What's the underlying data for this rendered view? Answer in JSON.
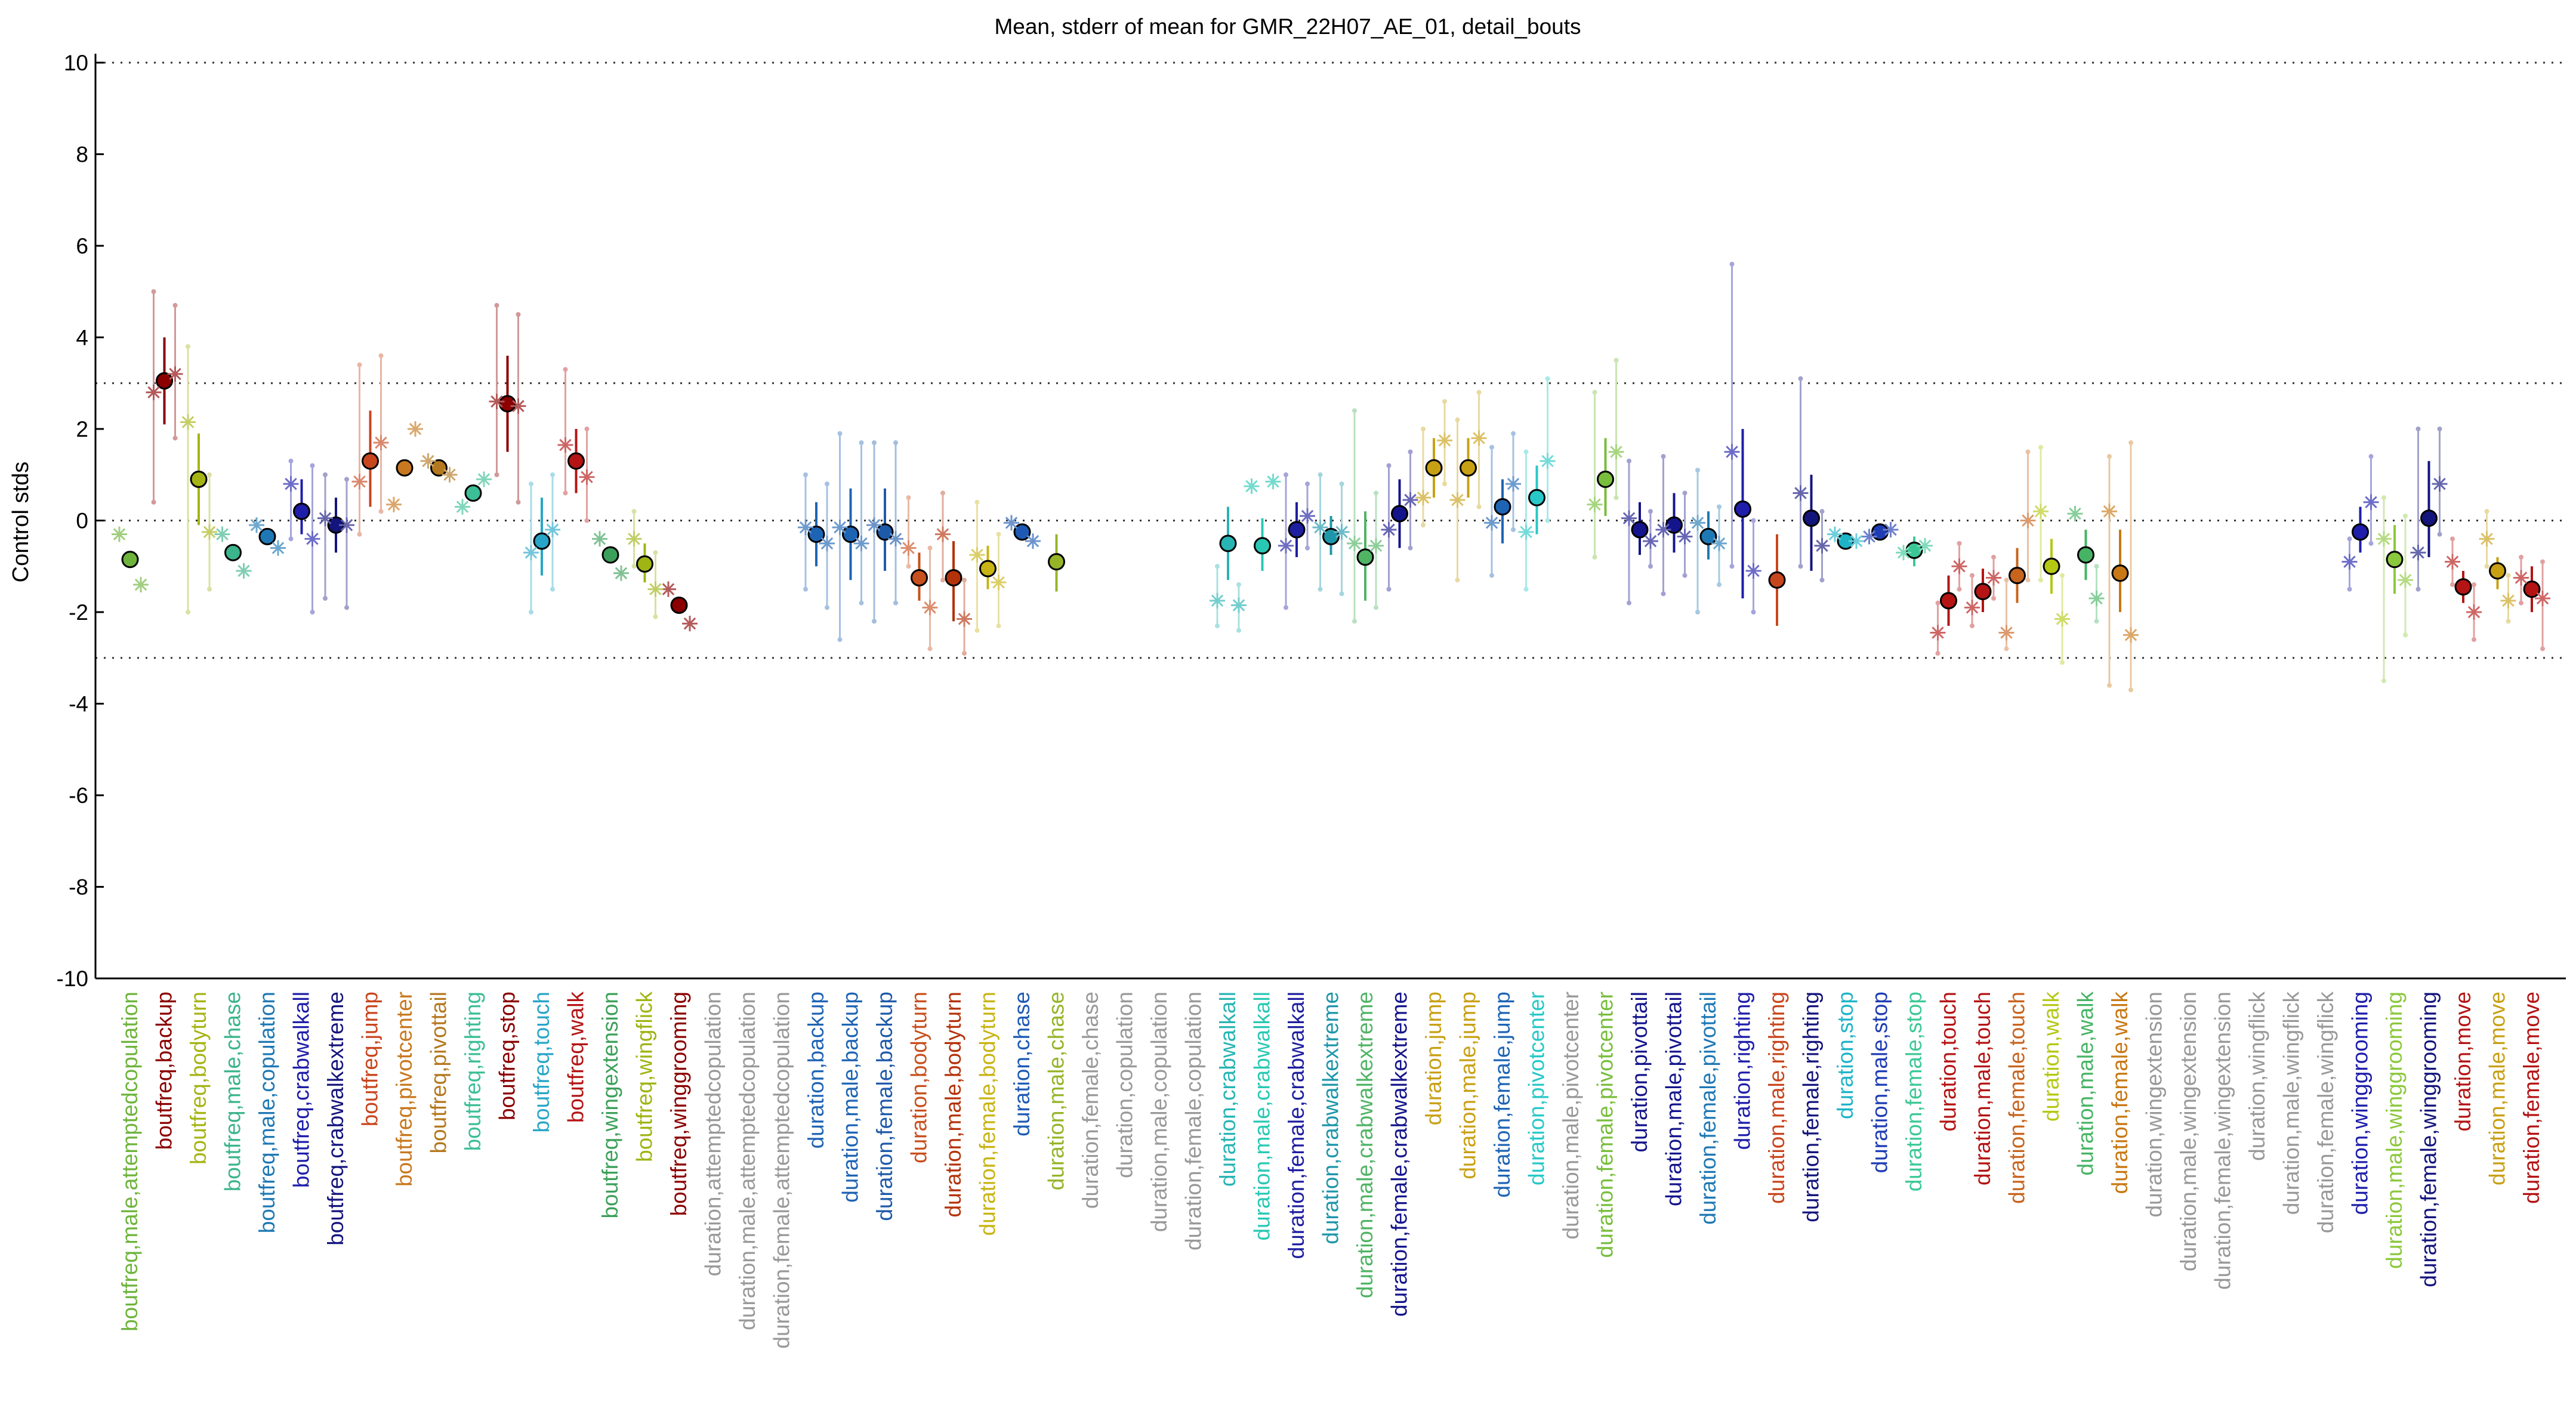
{
  "chart_data": {
    "type": "scatter",
    "title": "Mean, stderr of mean for GMR_22H07_AE_01, detail_bouts",
    "xlabel": "",
    "ylabel": "Control stds",
    "ylim": [
      -10,
      10
    ],
    "yticks": [
      -10,
      -8,
      -6,
      -4,
      -2,
      0,
      2,
      4,
      6,
      8,
      10
    ],
    "reference_lines": [
      -10,
      -3,
      0,
      3,
      10
    ],
    "grid": false,
    "legend": "none",
    "categories": [
      "boutfreq,male,attemptedcopulation",
      "boutfreq,backup",
      "boutfreq,bodyturn",
      "boutfreq,male,chase",
      "boutfreq,male,copulation",
      "boutfreq,crabwalkall",
      "boutfreq,crabwalkextreme",
      "boutfreq,jump",
      "boutfreq,pivotcenter",
      "boutfreq,pivottail",
      "boutfreq,righting",
      "boutfreq,stop",
      "boutfreq,touch",
      "boutfreq,walk",
      "boutfreq,wingextension",
      "boutfreq,wingflick",
      "boutfreq,winggrooming",
      "duration,attemptedcopulation",
      "duration,male,attemptedcopulation",
      "duration,female,attemptedcopulation",
      "duration,backup",
      "duration,male,backup",
      "duration,female,backup",
      "duration,bodyturn",
      "duration,male,bodyturn",
      "duration,female,bodyturn",
      "duration,chase",
      "duration,male,chase",
      "duration,female,chase",
      "duration,copulation",
      "duration,male,copulation",
      "duration,female,copulation",
      "duration,crabwalkall",
      "duration,male,crabwalkall",
      "duration,female,crabwalkall",
      "duration,crabwalkextreme",
      "duration,male,crabwalkextreme",
      "duration,female,crabwalkextreme",
      "duration,jump",
      "duration,male,jump",
      "duration,female,jump",
      "duration,pivotcenter",
      "duration,male,pivotcenter",
      "duration,female,pivotcenter",
      "duration,pivottail",
      "duration,male,pivottail",
      "duration,female,pivottail",
      "duration,righting",
      "duration,male,righting",
      "duration,female,righting",
      "duration,stop",
      "duration,male,stop",
      "duration,female,stop",
      "duration,touch",
      "duration,male,touch",
      "duration,female,touch",
      "duration,walk",
      "duration,male,walk",
      "duration,female,walk",
      "duration,wingextension",
      "duration,male,wingextension",
      "duration,female,wingextension",
      "duration,wingflick",
      "duration,male,wingflick",
      "duration,female,wingflick",
      "duration,winggrooming",
      "duration,male,winggrooming",
      "duration,female,winggrooming",
      "duration,move",
      "duration,male,move",
      "duration,female,move"
    ],
    "label_colors": [
      "#6eb43c",
      "#8b0000",
      "#a5b414",
      "#3cb48c",
      "#1e78b4",
      "#1e1eaa",
      "#14147d",
      "#c8461e",
      "#c8781e",
      "#b4781e",
      "#3cbe96",
      "#8b0000",
      "#28a5c8",
      "#b41414",
      "#3ca05a",
      "#a0b414",
      "#8b0000",
      "#999999",
      "#999999",
      "#999999",
      "#1e64b4",
      "#1e64b4",
      "#1e5aaa",
      "#c8501e",
      "#b4320a",
      "#c8b414",
      "#1e5ab4",
      "#96b428",
      "#999999",
      "#999999",
      "#999999",
      "#999999",
      "#28b4b4",
      "#28c8b4",
      "#1e1ea0",
      "#1e96aa",
      "#50b464",
      "#14148c",
      "#c8a014",
      "#c8a014",
      "#1e64b4",
      "#28c8c8",
      "#999999",
      "#78be3c",
      "#14148c",
      "#14148c",
      "#1e78b4",
      "#1e1eaa",
      "#c8461e",
      "#14147d",
      "#1eb4c8",
      "#1e3cb4",
      "#3cc896",
      "#b41414",
      "#b41414",
      "#c8641e",
      "#b4c814",
      "#46b464",
      "#c87814",
      "#999999",
      "#999999",
      "#999999",
      "#999999",
      "#999999",
      "#999999",
      "#1e1eaa",
      "#8cc83c",
      "#14147d",
      "#b41414",
      "#c8a014",
      "#b41414"
    ],
    "series": [
      {
        "marker": "circle",
        "values": [
          -0.85,
          3.05,
          0.9,
          -0.7,
          -0.35,
          0.2,
          -0.1,
          1.3,
          1.15,
          1.15,
          0.6,
          2.55,
          -0.45,
          1.3,
          -0.75,
          -0.95,
          -1.85,
          null,
          null,
          null,
          -0.3,
          -0.3,
          -0.25,
          -1.25,
          -1.25,
          -1.05,
          -0.25,
          -0.9,
          null,
          null,
          null,
          null,
          -0.5,
          -0.55,
          -0.2,
          -0.35,
          -0.8,
          0.15,
          1.15,
          1.15,
          0.3,
          0.5,
          null,
          0.9,
          -0.2,
          -0.1,
          -0.35,
          0.25,
          -1.3,
          0.05,
          -0.45,
          -0.25,
          -0.65,
          -1.75,
          -1.55,
          -1.2,
          -1.0,
          -0.75,
          -1.15,
          null,
          null,
          null,
          null,
          null,
          null,
          -0.25,
          -0.85,
          0.05,
          -1.45,
          -1.1,
          -1.5
        ],
        "err_low": [
          null,
          2.1,
          -0.1,
          null,
          null,
          -0.3,
          -0.7,
          0.3,
          null,
          null,
          null,
          1.5,
          -1.2,
          0.6,
          null,
          -1.35,
          null,
          null,
          null,
          null,
          -1.0,
          -1.3,
          -1.1,
          -1.75,
          -2.2,
          -1.5,
          null,
          -1.55,
          null,
          null,
          null,
          null,
          -1.3,
          -1.1,
          -0.8,
          -0.75,
          -1.75,
          -0.6,
          0.5,
          0.5,
          -0.5,
          -0.3,
          null,
          0.1,
          -0.75,
          -0.7,
          -0.85,
          -1.7,
          -2.3,
          -1.1,
          null,
          null,
          -1.0,
          -2.3,
          -2.0,
          -1.8,
          -1.6,
          -1.3,
          -2.0,
          null,
          null,
          null,
          null,
          null,
          null,
          -0.7,
          -1.6,
          -0.8,
          -1.8,
          -1.5,
          -2.0
        ],
        "err_high": [
          null,
          4.0,
          1.9,
          null,
          null,
          0.9,
          0.5,
          2.4,
          null,
          null,
          null,
          3.6,
          0.5,
          2.0,
          null,
          -0.5,
          null,
          null,
          null,
          null,
          0.4,
          0.7,
          0.7,
          -0.7,
          -0.45,
          -0.55,
          null,
          -0.3,
          null,
          null,
          null,
          null,
          0.3,
          0.05,
          0.4,
          0.1,
          0.2,
          0.9,
          1.8,
          1.8,
          0.9,
          1.2,
          null,
          1.8,
          0.4,
          0.6,
          0.2,
          2.0,
          -0.3,
          1.0,
          null,
          null,
          -0.35,
          -1.2,
          -1.05,
          -0.6,
          -0.4,
          -0.2,
          -0.2,
          null,
          null,
          null,
          null,
          null,
          null,
          0.3,
          -0.1,
          1.3,
          -1.1,
          -0.8,
          -1.0
        ]
      },
      {
        "marker": "asterisk",
        "values": [
          -0.3,
          2.8,
          2.15,
          -0.3,
          -0.1,
          0.8,
          0.05,
          0.85,
          0.35,
          1.3,
          0.3,
          2.6,
          -0.7,
          1.65,
          -0.4,
          -0.4,
          -1.5,
          null,
          null,
          null,
          -0.15,
          -0.15,
          -0.1,
          -0.6,
          -0.3,
          -0.75,
          -0.05,
          null,
          null,
          null,
          null,
          null,
          -1.75,
          0.75,
          -0.55,
          -0.15,
          -0.5,
          -0.2,
          0.5,
          0.45,
          -0.05,
          -0.25,
          null,
          0.35,
          0.05,
          -0.2,
          -0.05,
          1.5,
          null,
          0.6,
          -0.3,
          -0.35,
          -0.7,
          -2.45,
          -1.9,
          -2.45,
          0.2,
          0.15,
          0.2,
          null,
          null,
          null,
          null,
          null,
          null,
          -0.9,
          -0.4,
          -0.7,
          -0.9,
          -0.4,
          -1.25
        ],
        "err_low": [
          null,
          0.4,
          -2.0,
          null,
          null,
          -0.4,
          -1.7,
          -0.3,
          null,
          null,
          null,
          1.0,
          -2.0,
          0.6,
          null,
          -1.0,
          null,
          null,
          null,
          null,
          -1.5,
          -2.6,
          -2.2,
          -1.0,
          -1.3,
          -2.4,
          null,
          null,
          null,
          null,
          null,
          null,
          -2.3,
          null,
          -1.9,
          -1.5,
          -2.2,
          -1.5,
          -0.1,
          -1.3,
          -1.2,
          -1.5,
          null,
          -0.8,
          -1.8,
          -1.6,
          -2.0,
          -1.0,
          null,
          -1.0,
          null,
          null,
          null,
          -2.9,
          -2.3,
          -2.8,
          -1.3,
          null,
          -3.6,
          null,
          null,
          null,
          null,
          null,
          null,
          -1.5,
          -3.5,
          -1.5,
          -1.4,
          -1.0,
          -1.8
        ],
        "err_high": [
          null,
          5.0,
          3.8,
          null,
          null,
          1.3,
          1.0,
          3.4,
          null,
          null,
          null,
          4.7,
          0.8,
          3.3,
          null,
          0.2,
          null,
          null,
          null,
          null,
          1.0,
          1.9,
          1.7,
          0.5,
          0.6,
          0.4,
          null,
          null,
          null,
          null,
          null,
          null,
          -1.0,
          null,
          1.0,
          1.0,
          2.4,
          1.2,
          2.0,
          2.2,
          1.6,
          1.5,
          null,
          2.8,
          1.3,
          1.4,
          1.1,
          5.6,
          null,
          3.1,
          null,
          null,
          null,
          -1.8,
          -1.2,
          -1.3,
          1.6,
          null,
          1.4,
          null,
          null,
          null,
          null,
          null,
          null,
          -0.4,
          0.5,
          2.0,
          -0.4,
          0.2,
          -0.8
        ]
      },
      {
        "marker": "asterisk",
        "values": [
          -1.4,
          3.2,
          -0.25,
          -1.1,
          -0.6,
          -0.4,
          -0.1,
          1.7,
          2.0,
          1.0,
          0.9,
          2.5,
          -0.2,
          0.95,
          -1.15,
          -1.5,
          -2.25,
          null,
          null,
          null,
          -0.5,
          -0.5,
          -0.4,
          -1.9,
          -2.15,
          -1.35,
          -0.45,
          null,
          null,
          null,
          null,
          null,
          -1.85,
          0.85,
          0.1,
          -0.25,
          -0.55,
          0.45,
          1.75,
          1.8,
          0.8,
          1.3,
          null,
          1.5,
          -0.45,
          -0.35,
          -0.5,
          -1.1,
          null,
          -0.55,
          -0.45,
          -0.2,
          -0.55,
          -1.0,
          -1.25,
          0.0,
          -2.15,
          -1.7,
          -2.5,
          null,
          null,
          null,
          null,
          null,
          null,
          0.4,
          -1.3,
          0.8,
          -2.0,
          -1.75,
          -1.7
        ],
        "err_low": [
          null,
          1.8,
          -1.5,
          null,
          null,
          -2.0,
          -1.9,
          0.2,
          null,
          null,
          null,
          0.4,
          -1.5,
          0.0,
          null,
          -2.1,
          null,
          null,
          null,
          null,
          -1.9,
          -1.8,
          -1.8,
          -2.8,
          -2.9,
          -2.3,
          null,
          null,
          null,
          null,
          null,
          null,
          -2.4,
          null,
          -0.6,
          -1.6,
          -1.9,
          -0.6,
          0.8,
          0.3,
          -0.2,
          0.0,
          null,
          0.5,
          -1.0,
          -1.2,
          -1.4,
          -2.0,
          null,
          -1.3,
          null,
          null,
          null,
          -1.5,
          -1.7,
          -1.3,
          -3.1,
          -2.2,
          -3.7,
          null,
          null,
          null,
          null,
          null,
          null,
          -0.5,
          -2.5,
          -0.3,
          -2.6,
          -2.2,
          -2.8
        ],
        "err_high": [
          null,
          4.7,
          1.0,
          null,
          null,
          1.2,
          0.9,
          3.6,
          null,
          null,
          null,
          4.5,
          1.0,
          2.0,
          null,
          -0.7,
          null,
          null,
          null,
          null,
          0.8,
          1.7,
          1.7,
          -0.6,
          -1.3,
          -0.3,
          null,
          null,
          null,
          null,
          null,
          null,
          -1.4,
          null,
          0.8,
          0.8,
          0.6,
          1.5,
          2.6,
          2.8,
          1.9,
          3.1,
          null,
          3.5,
          0.2,
          0.6,
          0.3,
          0.0,
          null,
          0.2,
          null,
          null,
          null,
          -0.5,
          -0.8,
          1.5,
          -1.2,
          -1.0,
          1.7,
          null,
          null,
          null,
          null,
          null,
          null,
          1.4,
          0.1,
          2.0,
          -1.4,
          -1.2,
          -0.9
        ]
      }
    ]
  }
}
